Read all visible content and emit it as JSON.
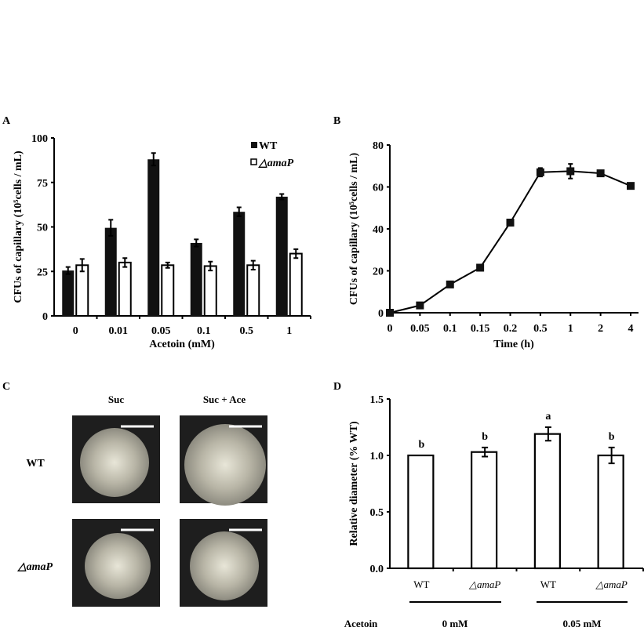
{
  "chart_data": [
    {
      "panel": "A",
      "type": "bar",
      "categories": [
        "0",
        "0.01",
        "0.05",
        "0.1",
        "0.5",
        "1"
      ],
      "series": [
        {
          "name": "WT",
          "values": [
            25.5,
            49.5,
            88,
            41,
            58.5,
            67
          ],
          "errors": [
            2,
            4.5,
            3.5,
            2,
            2.5,
            1.5
          ],
          "color": "#111111"
        },
        {
          "name": "△amaP",
          "values": [
            28.5,
            30,
            28.5,
            28,
            28.5,
            35
          ],
          "errors": [
            3.5,
            2.5,
            1.5,
            2.5,
            2.5,
            2.5
          ],
          "color": "#ffffff"
        }
      ],
      "xlabel": "Acetoin (mM)",
      "ylabel": "CFUs of capillary (10⁵cells / mL)",
      "ylim": [
        0,
        100
      ],
      "yticks": [
        "0",
        "25",
        "50",
        "75",
        "100"
      ],
      "legend": "top-right",
      "grid": false
    },
    {
      "panel": "B",
      "type": "line",
      "categories": [
        "0",
        "0.05",
        "0.1",
        "0.15",
        "0.2",
        "0.5",
        "1",
        "2",
        "4"
      ],
      "values": [
        0,
        3.5,
        13.5,
        21.5,
        43,
        67,
        67.5,
        66.5,
        60.5
      ],
      "errors": [
        1,
        1,
        1,
        1,
        1.5,
        2,
        3.5,
        1,
        1
      ],
      "xlabel": "Time (h)",
      "ylabel": "CFUs of capillary (10⁵cells / mL)",
      "ylim": [
        0,
        80
      ],
      "yticks": [
        "0",
        "20",
        "40",
        "60",
        "80"
      ],
      "grid": false
    },
    {
      "panel": "D",
      "type": "bar",
      "categories": [
        "WT",
        "△amaP",
        "WT",
        "△amaP"
      ],
      "values": [
        1.0,
        1.03,
        1.19,
        1.0
      ],
      "errors": [
        0,
        0.04,
        0.06,
        0.07
      ],
      "significance": [
        "b",
        "b",
        "a",
        "b"
      ],
      "groups": [
        {
          "label": "0 mM"
        },
        {
          "label": "0.05 mM"
        }
      ],
      "group_row_label": "Acetoin",
      "ylabel": "Relative  diameter (% WT)",
      "ylim": [
        0,
        1.5
      ],
      "yticks": [
        "0.0",
        "0.5",
        "1.0",
        "1.5"
      ],
      "grid": false
    }
  ],
  "panels": {
    "A": {
      "letter": "A"
    },
    "B": {
      "letter": "B"
    },
    "C": {
      "letter": "C",
      "columns": [
        "Suc",
        "Suc + Ace"
      ],
      "rows": [
        "WT",
        "△amaP"
      ]
    },
    "D": {
      "letter": "D"
    }
  }
}
